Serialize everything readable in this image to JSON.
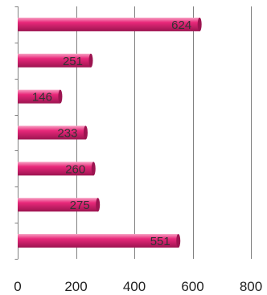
{
  "chart_data": {
    "type": "bar",
    "orientation": "horizontal",
    "values": [
      624,
      251,
      146,
      233,
      260,
      275,
      551
    ],
    "data_labels": [
      "624",
      "251",
      "146",
      "233",
      "260",
      "275",
      "551"
    ],
    "xlim": [
      0,
      800
    ],
    "x_ticks": [
      0,
      200,
      400,
      600,
      800
    ],
    "x_tick_labels": [
      "0",
      "200",
      "400",
      "600",
      "800"
    ],
    "grid": "vertical",
    "legend": "none",
    "bar_color": "#e8287a",
    "bar_highlight": "#f7a2c4",
    "bar_shadow": "#9c1450"
  }
}
